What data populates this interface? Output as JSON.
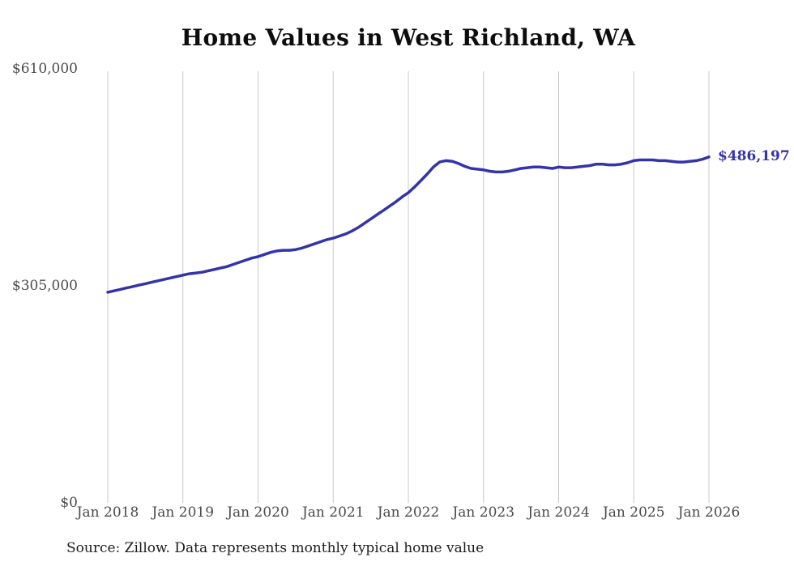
{
  "chart_data": {
    "type": "line",
    "title": "Home Values in West Richland, WA",
    "source_note": "Source: Zillow. Data represents monthly typical home value",
    "end_label": "$486,197",
    "line_color": "#3533a8",
    "grid_color": "#c9c9c9",
    "x_start": "2018-01",
    "x_interval": "monthly",
    "x_ticks": [
      "Jan 2018",
      "Jan 2019",
      "Jan 2020",
      "Jan 2021",
      "Jan 2022",
      "Jan 2023",
      "Jan 2024",
      "Jan 2025",
      "Jan 2026"
    ],
    "y_ticks": [
      {
        "label": "$610,000",
        "value": 610000
      },
      {
        "label": "$305,000",
        "value": 305000
      },
      {
        "label": "$0",
        "value": 0
      }
    ],
    "ylim": [
      0,
      610000
    ],
    "xlabel": "",
    "ylabel": "",
    "legend": "none",
    "grid": "vertical-only",
    "series": [
      {
        "name": "Typical home value",
        "values": [
          296000,
          298000,
          300000,
          302000,
          304000,
          306000,
          308000,
          310000,
          312000,
          314000,
          316000,
          318000,
          320000,
          322000,
          323000,
          324000,
          326000,
          328000,
          330000,
          332000,
          335000,
          338000,
          341000,
          344000,
          346000,
          349000,
          352000,
          354000,
          355000,
          355000,
          356000,
          358000,
          361000,
          364000,
          367000,
          370000,
          372000,
          375000,
          378000,
          382000,
          387000,
          393000,
          399000,
          405000,
          411000,
          417000,
          423000,
          430000,
          436000,
          444000,
          453000,
          462000,
          472000,
          479000,
          481000,
          480000,
          477000,
          473000,
          470000,
          469000,
          468000,
          466000,
          465000,
          465000,
          466000,
          468000,
          470000,
          471000,
          472000,
          472000,
          471000,
          470000,
          472000,
          471000,
          471000,
          472000,
          473000,
          474000,
          476000,
          476000,
          475000,
          475000,
          476000,
          478000,
          481000,
          482000,
          482000,
          482000,
          481000,
          481000,
          480000,
          479000,
          479000,
          480000,
          481000,
          483000,
          486197
        ]
      }
    ]
  }
}
